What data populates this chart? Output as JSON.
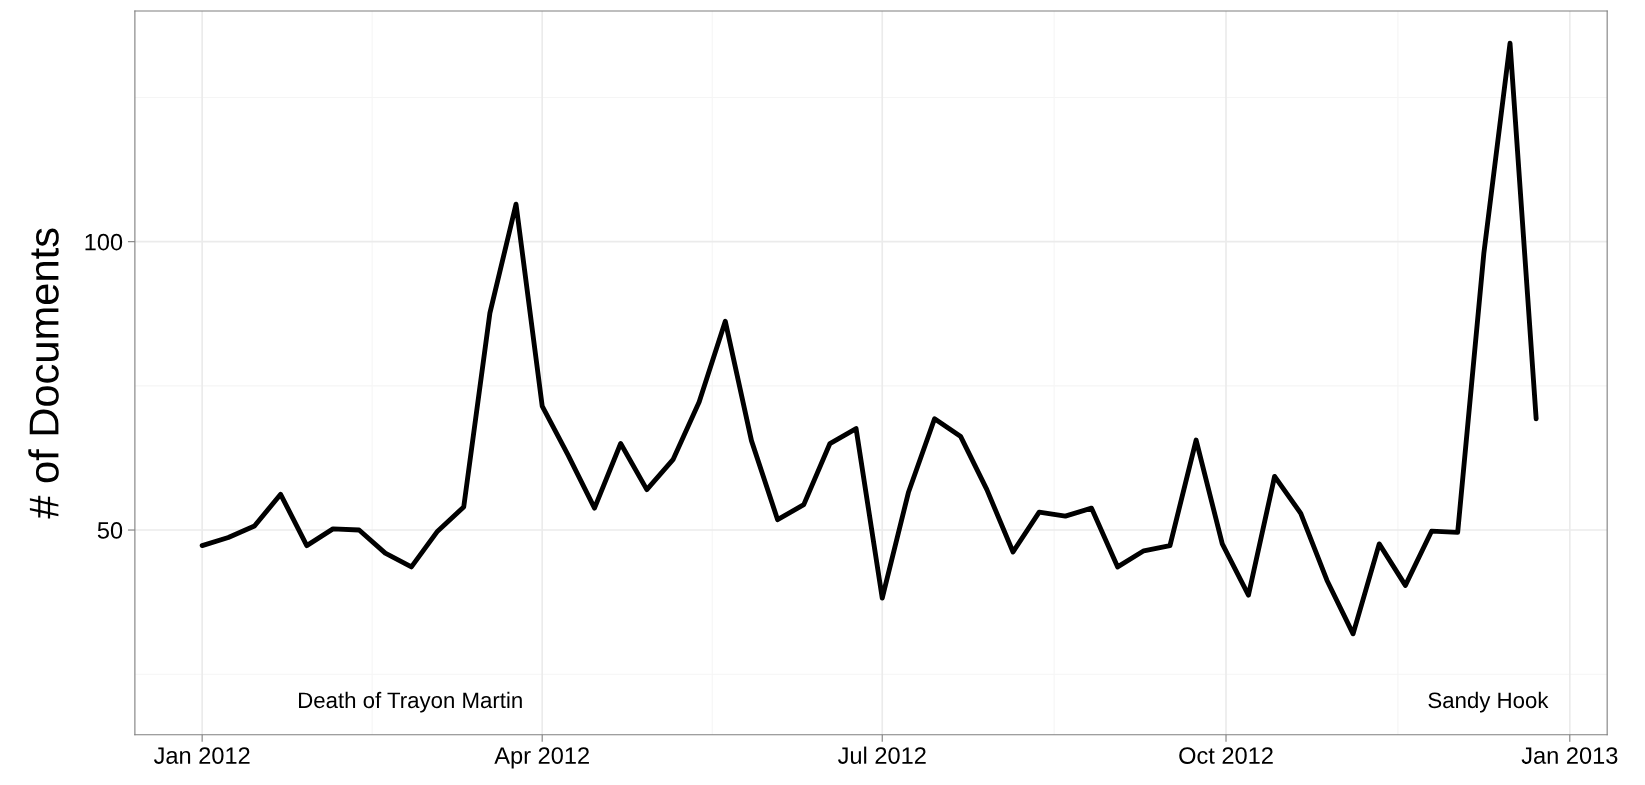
{
  "chart_data": {
    "type": "line",
    "ylabel": "# of Documents",
    "x": [
      "2012-01-01",
      "2012-01-08",
      "2012-01-15",
      "2012-01-22",
      "2012-01-29",
      "2012-02-05",
      "2012-02-12",
      "2012-02-19",
      "2012-02-26",
      "2012-03-04",
      "2012-03-11",
      "2012-03-18",
      "2012-03-25",
      "2012-04-01",
      "2012-04-08",
      "2012-04-15",
      "2012-04-22",
      "2012-04-29",
      "2012-05-06",
      "2012-05-13",
      "2012-05-20",
      "2012-05-27",
      "2012-06-03",
      "2012-06-10",
      "2012-06-17",
      "2012-06-24",
      "2012-07-01",
      "2012-07-08",
      "2012-07-15",
      "2012-07-22",
      "2012-07-29",
      "2012-08-05",
      "2012-08-12",
      "2012-08-19",
      "2012-08-26",
      "2012-09-02",
      "2012-09-09",
      "2012-09-16",
      "2012-09-23",
      "2012-09-30",
      "2012-10-07",
      "2012-10-14",
      "2012-10-21",
      "2012-10-28",
      "2012-11-04",
      "2012-11-11",
      "2012-11-18",
      "2012-11-25",
      "2012-12-02",
      "2012-12-09",
      "2012-12-16",
      "2012-12-23"
    ],
    "series": [
      {
        "color": "#000000",
        "values": [
          47.3,
          48.7,
          50.7,
          56.2,
          47.3,
          50.2,
          50,
          46,
          43.6,
          49.8,
          54,
          87.6,
          106.5,
          71.5,
          62.9,
          53.8,
          65,
          57,
          62.2,
          72.2,
          86.2,
          65.5,
          51.8,
          54.4,
          65,
          67.6,
          38.2,
          56.5,
          69.3,
          66.2,
          57,
          46.2,
          53.1,
          52.4,
          53.8,
          43.6,
          46.4,
          47.3,
          65.6,
          47.6,
          38.7,
          59.3,
          52.9,
          41.3,
          32,
          47.6,
          40.4,
          49.8,
          49.6,
          98,
          134.4,
          69.3
        ]
      }
    ],
    "xlim": [
      "2011-12-14",
      "2013-01-11"
    ],
    "xticks": [
      {
        "value": "2012-01-01",
        "label": "Jan 2012"
      },
      {
        "value": "2012-04-01",
        "label": "Apr 2012"
      },
      {
        "value": "2012-07-01",
        "label": "Jul 2012"
      },
      {
        "value": "2012-10-01",
        "label": "Oct 2012"
      },
      {
        "value": "2013-01-01",
        "label": "Jan 2013"
      }
    ],
    "ylim": [
      14.5,
      140
    ],
    "yticks": [
      50,
      100
    ],
    "grid": true,
    "line_style": "solid",
    "annotations": [
      "Death of Trayon Martin",
      "Sandy Hook"
    ]
  }
}
